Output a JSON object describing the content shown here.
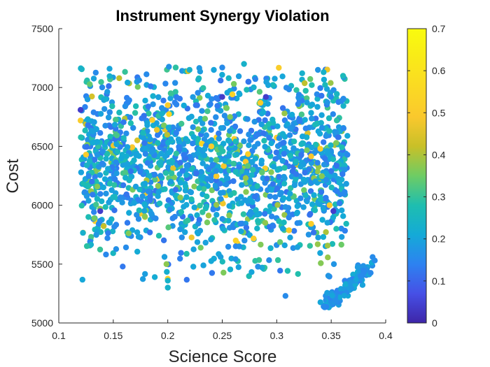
{
  "chart_data": {
    "type": "scatter",
    "title": "Instrument Synergy Violation",
    "xlabel": "Science Score",
    "ylabel": "Cost",
    "xlim": [
      0.1,
      0.4
    ],
    "ylim": [
      5000,
      7500
    ],
    "xticks": [
      "0.1",
      "0.15",
      "0.2",
      "0.25",
      "0.3",
      "0.35",
      "0.4"
    ],
    "yticks": [
      "5000",
      "5500",
      "6000",
      "6500",
      "7000",
      "7500"
    ],
    "colorbar": {
      "min": 0,
      "max": 0.7,
      "ticks": [
        "0",
        "0.1",
        "0.2",
        "0.3",
        "0.4",
        "0.5",
        "0.6",
        "0.7"
      ],
      "colormap": "parula"
    },
    "grid": false,
    "point_color_value_distribution": "mostly 0.15-0.35, few up to 0.7",
    "points": [
      {
        "x": 0.12,
        "y": 6810,
        "c": 0.05
      },
      {
        "x": 0.138,
        "y": 5950,
        "c": 0.05
      },
      {
        "x": 0.352,
        "y": 5950,
        "c": 0.05
      },
      {
        "x": 0.25,
        "y": 6920,
        "c": 0.05
      },
      {
        "x": 0.29,
        "y": 6920,
        "c": 0.05
      },
      {
        "x": 0.27,
        "y": 7200,
        "c": 0.3
      },
      {
        "x": 0.25,
        "y": 7170,
        "c": 0.2
      },
      {
        "x": 0.22,
        "y": 7150,
        "c": 0.3
      },
      {
        "x": 0.343,
        "y": 7130,
        "c": 0.3
      },
      {
        "x": 0.2,
        "y": 5360,
        "c": 0.3
      },
      {
        "x": 0.2,
        "y": 5300,
        "c": 0.3
      },
      {
        "x": 0.308,
        "y": 5230,
        "c": 0.2
      },
      {
        "x": 0.343,
        "y": 5140,
        "c": 0.2
      },
      {
        "x": 0.388,
        "y": 5560,
        "c": 0.2
      },
      {
        "x": 0.39,
        "y": 5530,
        "c": 0.2
      },
      {
        "x": 0.12,
        "y": 6720,
        "c": 0.65
      },
      {
        "x": 0.2,
        "y": 6850,
        "c": 0.65
      },
      {
        "x": 0.24,
        "y": 6500,
        "c": 0.65
      },
      {
        "x": 0.34,
        "y": 6480,
        "c": 0.65
      },
      {
        "x": 0.285,
        "y": 6870,
        "c": 0.65
      },
      {
        "x": 0.125,
        "y": 6430,
        "c": 0.65
      },
      {
        "x": 0.19,
        "y": 6640,
        "c": 0.6
      }
    ]
  }
}
